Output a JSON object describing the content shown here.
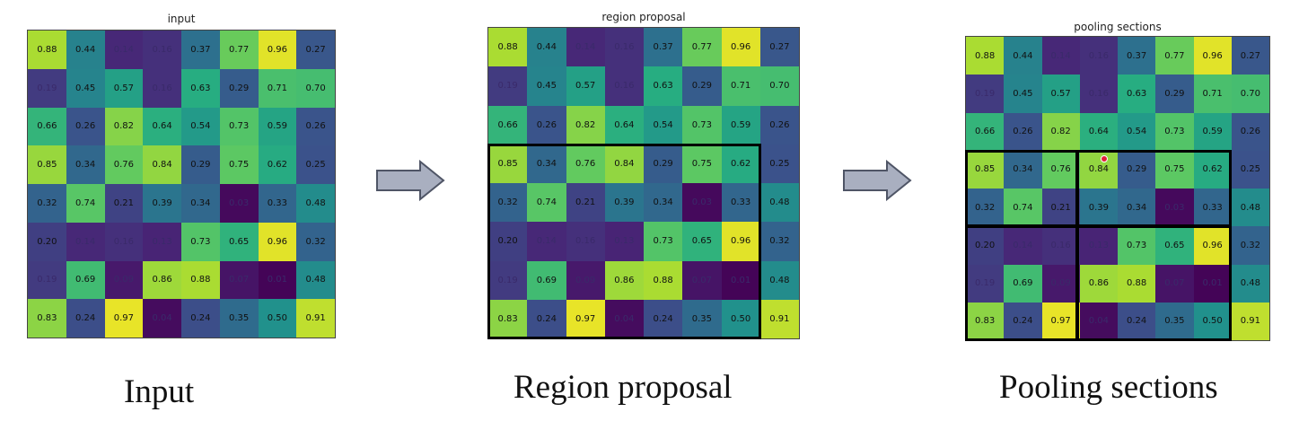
{
  "panels": [
    {
      "title": "input",
      "caption": "Input"
    },
    {
      "title": "region proposal",
      "caption": "Region proposal"
    },
    {
      "title": "pooling sections",
      "caption": "Pooling sections"
    }
  ],
  "matrix": [
    [
      "0.88",
      "0.44",
      "0.14",
      "0.16",
      "0.37",
      "0.77",
      "0.96",
      "0.27"
    ],
    [
      "0.19",
      "0.45",
      "0.57",
      "0.16",
      "0.63",
      "0.29",
      "0.71",
      "0.70"
    ],
    [
      "0.66",
      "0.26",
      "0.82",
      "0.64",
      "0.54",
      "0.73",
      "0.59",
      "0.26"
    ],
    [
      "0.85",
      "0.34",
      "0.76",
      "0.84",
      "0.29",
      "0.75",
      "0.62",
      "0.25"
    ],
    [
      "0.32",
      "0.74",
      "0.21",
      "0.39",
      "0.34",
      "0.03",
      "0.33",
      "0.48"
    ],
    [
      "0.20",
      "0.14",
      "0.16",
      "0.13",
      "0.73",
      "0.65",
      "0.96",
      "0.32"
    ],
    [
      "0.19",
      "0.69",
      "0.09",
      "0.86",
      "0.88",
      "0.07",
      "0.01",
      "0.48"
    ],
    [
      "0.83",
      "0.24",
      "0.97",
      "0.04",
      "0.24",
      "0.35",
      "0.50",
      "0.91"
    ]
  ],
  "colors": {
    "colormap": "viridis"
  }
}
